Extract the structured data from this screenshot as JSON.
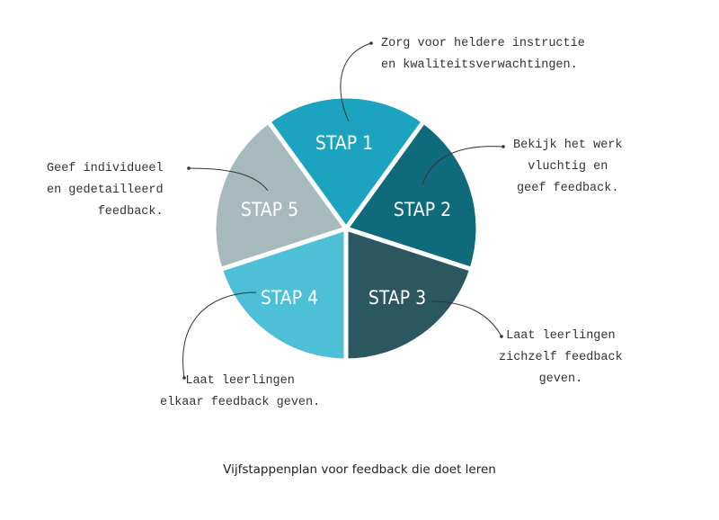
{
  "steps": [
    {
      "label": "STAP 1",
      "note": "Zorg voor heldere instructie\nen kwaliteitsverwachtingen.",
      "color": "#1ba3bf"
    },
    {
      "label": "STAP 2",
      "note": "Bekijk het werk\nvluchtig en\ngeef feedback.",
      "color": "#0f6b7b"
    },
    {
      "label": "STAP 3",
      "note": "Laat leerlingen\nzichzelf feedback\ngeven.",
      "color": "#2b5760"
    },
    {
      "label": "STAP 4",
      "note": "Laat leerlingen\nelkaar feedback geven.",
      "color": "#4dbfd6"
    },
    {
      "label": "STAP 5",
      "note": "Geef individueel\nen gedetailleerd\nfeedback.",
      "color": "#a6babd"
    }
  ],
  "caption": "Vijfstappenplan voor feedback die doet leren"
}
